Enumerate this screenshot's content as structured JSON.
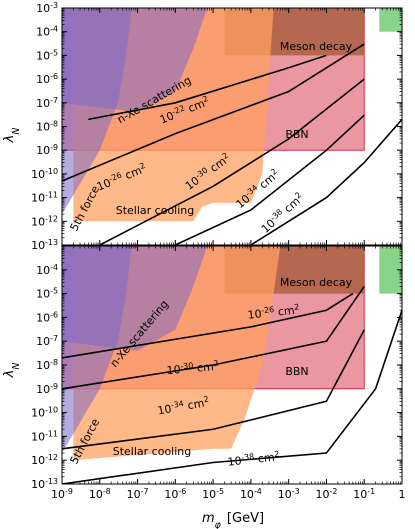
{
  "chart_data": [
    {
      "type": "area",
      "panel": "top",
      "xlim": [
        1e-09,
        1
      ],
      "ylim": [
        1e-13,
        0.001
      ],
      "xscale": "log",
      "yscale": "log",
      "xlabel": "",
      "ylabel": "λ_N",
      "ytick_labels": [
        "10^{-13}",
        "10^{-12}",
        "10^{-11}",
        "10^{-10}",
        "10^{-9}",
        "10^{-8}",
        "10^{-7}",
        "10^{-6}",
        "10^{-5}",
        "10^{-4}",
        "10^{-3}"
      ],
      "regions": [
        {
          "name": "Meson decay",
          "color": "#a0522d",
          "label": "Meson decay",
          "boundary": [
            [
              2e-05,
              1e-05
            ],
            [
              0.1,
              1e-05
            ],
            [
              0.1,
              0.001
            ],
            [
              2e-05,
              0.001
            ]
          ]
        },
        {
          "name": "BBN",
          "color": "#e06070",
          "label": "BBN",
          "boundary": [
            [
              1e-09,
              1e-09
            ],
            [
              0.1,
              1e-09
            ],
            [
              0.1,
              0.001
            ],
            [
              1e-09,
              0.001
            ]
          ]
        },
        {
          "name": "5th force",
          "color": "#7b68c8",
          "label": "5th force",
          "boundary": [
            [
              1e-09,
              2e-12
            ],
            [
              1e-08,
              1e-09
            ],
            [
              3e-08,
              1e-07
            ],
            [
              5e-08,
              1e-05
            ],
            [
              7e-08,
              0.001
            ],
            [
              1e-09,
              0.001
            ]
          ]
        },
        {
          "name": "n-Xe scattering",
          "color": "#7b68c8",
          "label": "n-Xe scattering",
          "boundary": [
            [
              1e-09,
              1e-07
            ],
            [
              1e-07,
              4e-08
            ],
            [
              1e-06,
              3e-07
            ],
            [
              3e-06,
              2e-05
            ],
            [
              7e-06,
              0.001
            ],
            [
              1e-09,
              0.001
            ]
          ]
        },
        {
          "name": "Stellar cooling",
          "color": "#ffa060",
          "label": "Stellar cooling",
          "boundary": [
            [
              2e-09,
              1e-12
            ],
            [
              3e-06,
              1e-12
            ],
            [
              5e-06,
              4e-12
            ],
            [
              1e-05,
              6e-12
            ],
            [
              0.0001,
              6e-12
            ],
            [
              0.0002,
              1e-10
            ],
            [
              0.0003,
              1e-06
            ],
            [
              0.0004,
              0.001
            ],
            [
              2e-09,
              0.001
            ]
          ]
        },
        {
          "name": "allowed corner",
          "color": "#7ccf7c",
          "label": "",
          "boundary": [
            [
              0.25,
              0.0001
            ],
            [
              1,
              0.0001
            ],
            [
              1,
              0.001
            ],
            [
              0.25,
              0.001
            ]
          ]
        }
      ],
      "contours": [
        {
          "label": "10^{-22} cm^{2}",
          "points": [
            [
              5e-09,
              2e-08
            ],
            [
              1e-06,
              1e-07
            ],
            [
              0.001,
              3e-06
            ],
            [
              0.01,
              1e-05
            ]
          ]
        },
        {
          "label": "10^{-26} cm^{2}",
          "points": [
            [
              1e-09,
              5e-11
            ],
            [
              1e-06,
              5e-09
            ],
            [
              0.001,
              3e-07
            ],
            [
              0.1,
              3e-05
            ]
          ]
        },
        {
          "label": "10^{-30} cm^{2}",
          "points": [
            [
              1e-08,
              1e-13
            ],
            [
              1e-05,
              3e-11
            ],
            [
              0.001,
              3e-09
            ],
            [
              0.1,
              1e-06
            ]
          ]
        },
        {
          "label": "10^{-34} cm^{2}",
          "points": [
            [
              1e-06,
              1e-13
            ],
            [
              0.0001,
              3e-12
            ],
            [
              0.01,
              1e-09
            ],
            [
              0.1,
              3e-08
            ]
          ]
        },
        {
          "label": "10^{-38} cm^{2}",
          "points": [
            [
              0.0001,
              1e-13
            ],
            [
              0.01,
              1e-11
            ],
            [
              0.1,
              3e-10
            ],
            [
              1,
              2e-08
            ]
          ]
        }
      ]
    },
    {
      "type": "area",
      "panel": "bottom",
      "xlim": [
        1e-09,
        1
      ],
      "ylim": [
        1e-13,
        0.001
      ],
      "xscale": "log",
      "yscale": "log",
      "xlabel": "m_φ [GeV]",
      "ylabel": "λ_N",
      "xtick_labels": [
        "10^{-9}",
        "10^{-8}",
        "10^{-7}",
        "10^{-6}",
        "10^{-5}",
        "10^{-4}",
        "10^{-3}",
        "10^{-2}",
        "10^{-1}",
        "1"
      ],
      "ytick_labels": [
        "10^{-13}",
        "10^{-12}",
        "10^{-11}",
        "10^{-10}",
        "10^{-9}",
        "10^{-8}",
        "10^{-7}",
        "10^{-6}",
        "10^{-5}",
        "10^{-4}",
        "10^{-3}"
      ],
      "regions": [
        {
          "name": "Meson decay",
          "color": "#a0522d",
          "label": "Meson decay",
          "boundary": [
            [
              2e-05,
              1e-05
            ],
            [
              0.1,
              1e-05
            ],
            [
              0.1,
              0.001
            ],
            [
              2e-05,
              0.001
            ]
          ]
        },
        {
          "name": "BBN",
          "color": "#e06070",
          "label": "BBN",
          "boundary": [
            [
              1e-09,
              1e-09
            ],
            [
              0.1,
              1e-09
            ],
            [
              0.1,
              0.001
            ],
            [
              1e-09,
              0.001
            ]
          ]
        },
        {
          "name": "5th force",
          "color": "#7b68c8",
          "label": "5th force",
          "boundary": [
            [
              1e-09,
              2e-12
            ],
            [
              1e-08,
              1e-09
            ],
            [
              3e-08,
              1e-07
            ],
            [
              5e-08,
              1e-05
            ],
            [
              7e-08,
              0.001
            ],
            [
              1e-09,
              0.001
            ]
          ]
        },
        {
          "name": "n-Xe scattering",
          "color": "#7b68c8",
          "label": "n-Xe scattering",
          "boundary": [
            [
              1e-09,
              1e-07
            ],
            [
              1e-07,
              4e-08
            ],
            [
              1e-06,
              3e-07
            ],
            [
              3e-06,
              2e-05
            ],
            [
              7e-06,
              0.001
            ],
            [
              1e-09,
              0.001
            ]
          ]
        },
        {
          "name": "Stellar cooling",
          "color": "#ffa060",
          "label": "Stellar cooling",
          "boundary": [
            [
              2e-09,
              1e-12
            ],
            [
              1e-05,
              3e-12
            ],
            [
              3e-05,
              3e-12
            ],
            [
              7e-05,
              6e-11
            ],
            [
              0.0002,
              1e-08
            ],
            [
              0.0004,
              1e-05
            ],
            [
              0.0006,
              0.001
            ],
            [
              2e-09,
              0.001
            ]
          ]
        },
        {
          "name": "allowed corner",
          "color": "#7ccf7c",
          "label": "",
          "boundary": [
            [
              0.25,
              1e-05
            ],
            [
              1,
              1e-05
            ],
            [
              1,
              0.001
            ],
            [
              0.25,
              0.001
            ]
          ]
        }
      ],
      "contours": [
        {
          "label": "10^{-26} cm^{2}",
          "points": [
            [
              1e-09,
              2e-08
            ],
            [
              0.0001,
              4e-07
            ],
            [
              0.01,
              2e-06
            ],
            [
              0.05,
              1e-05
            ]
          ]
        },
        {
          "label": "10^{-30} cm^{2}",
          "points": [
            [
              1e-09,
              1e-09
            ],
            [
              1e-05,
              1e-08
            ],
            [
              0.01,
              1e-07
            ],
            [
              0.1,
              2e-05
            ]
          ]
        },
        {
          "label": "10^{-34} cm^{2}",
          "points": [
            [
              1e-09,
              3e-12
            ],
            [
              1e-05,
              2e-11
            ],
            [
              0.01,
              3e-10
            ],
            [
              0.1,
              3e-07
            ]
          ]
        },
        {
          "label": "10^{-38} cm^{2}",
          "points": [
            [
              1e-09,
              1e-13
            ],
            [
              1e-05,
              8e-13
            ],
            [
              0.01,
              2e-12
            ],
            [
              0.2,
              1e-09
            ],
            [
              1,
              2e-06
            ]
          ]
        }
      ]
    }
  ]
}
